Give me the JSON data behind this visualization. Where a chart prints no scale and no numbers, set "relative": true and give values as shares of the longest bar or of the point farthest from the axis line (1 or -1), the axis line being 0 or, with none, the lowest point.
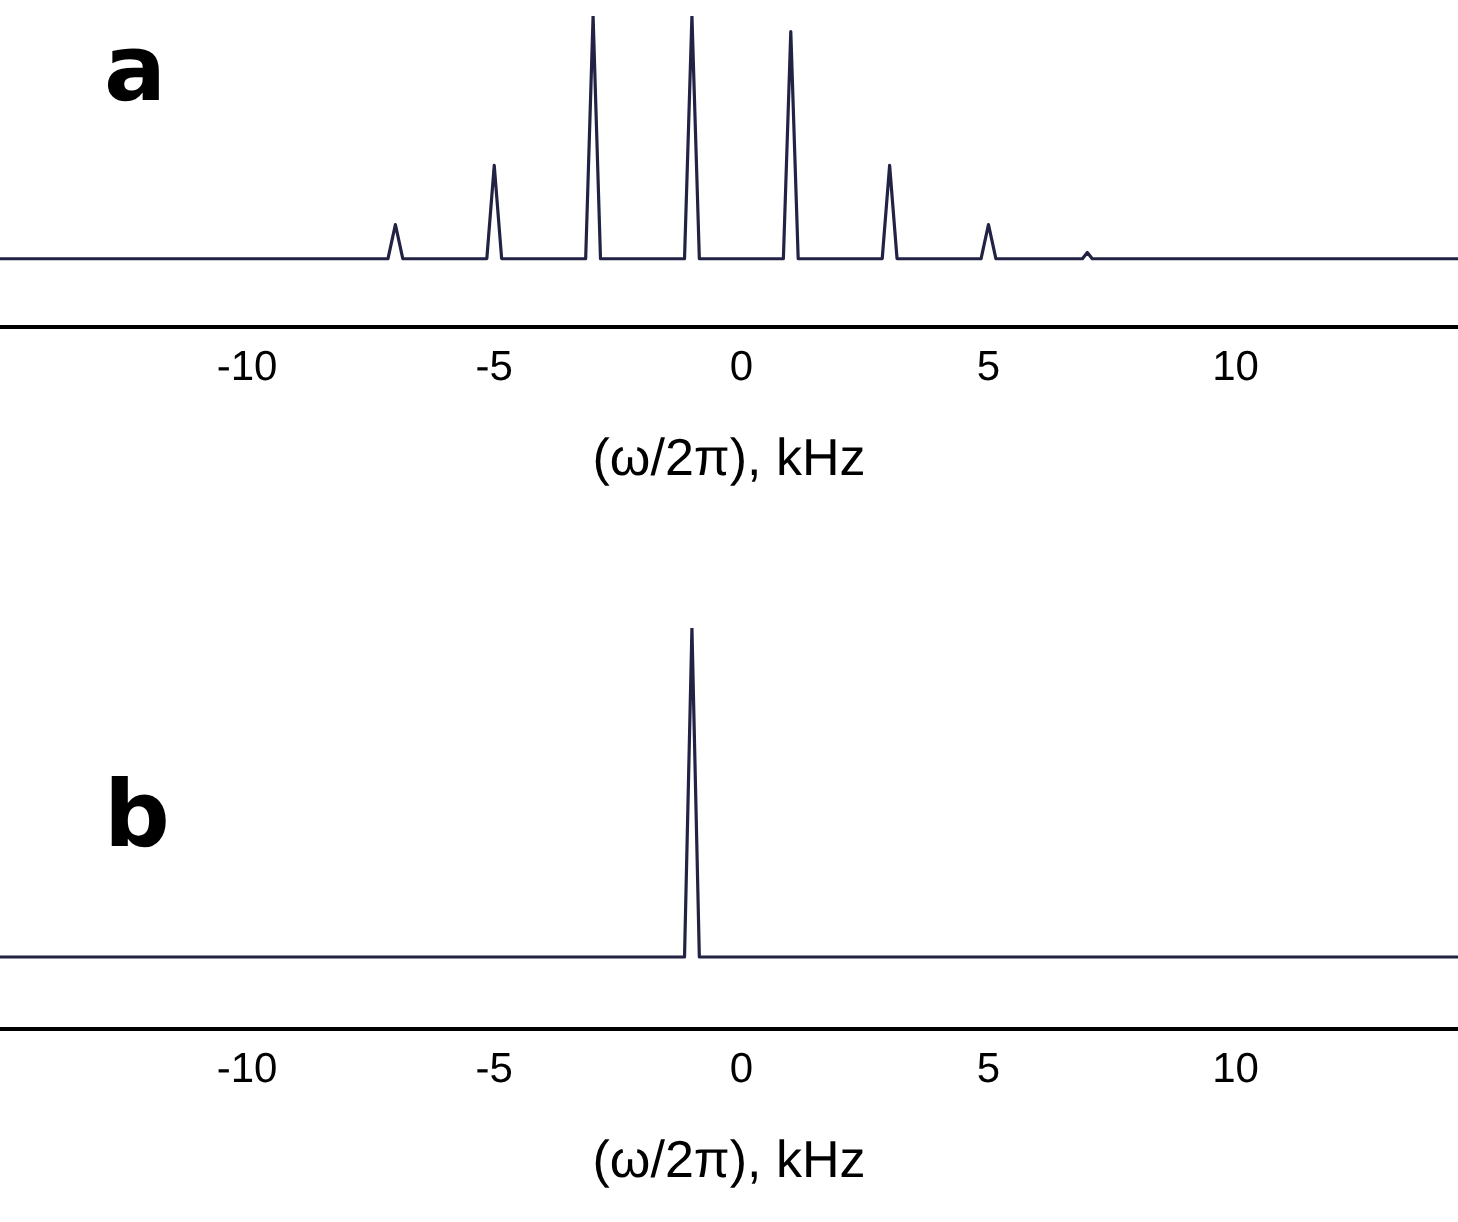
{
  "chart_data": [
    {
      "type": "line",
      "title": "a",
      "xlabel": "(ω/2π), kHz",
      "relative": true,
      "xlim": [
        -15,
        14.5
      ],
      "xticks": [
        -10,
        -5,
        0,
        5,
        10
      ],
      "grid": false,
      "legend": false,
      "marker": "none",
      "x": [
        -15,
        -7.15,
        -7,
        -6.85,
        -5.15,
        -5,
        -4.85,
        -3.15,
        -3,
        -2.85,
        -1.15,
        -1,
        -0.85,
        0.85,
        1,
        1.15,
        2.85,
        3,
        3.15,
        4.85,
        5,
        5.15,
        6.9,
        7,
        7.1,
        14.5
      ],
      "series": [
        {
          "color": "#222244",
          "values": [
            0.22,
            0.22,
            0.33,
            0.22,
            0.22,
            0.52,
            0.22,
            0.22,
            1,
            0.22,
            0.22,
            1,
            0.22,
            0.22,
            0.95,
            0.22,
            0.22,
            0.52,
            0.22,
            0.22,
            0.33,
            0.22,
            0.22,
            0.24,
            0.22,
            0.22
          ]
        }
      ]
    },
    {
      "type": "line",
      "title": "b",
      "xlabel": "(ω/2π), kHz",
      "relative": true,
      "xlim": [
        -15,
        14.5
      ],
      "xticks": [
        -10,
        -5,
        0,
        5,
        10
      ],
      "grid": false,
      "legend": false,
      "marker": "none",
      "x": [
        -15,
        -1.15,
        -1,
        -0.85,
        14.5
      ],
      "series": [
        {
          "color": "#222244",
          "values": [
            0.18,
            0.18,
            1,
            0.18,
            0.18
          ]
        }
      ]
    }
  ]
}
